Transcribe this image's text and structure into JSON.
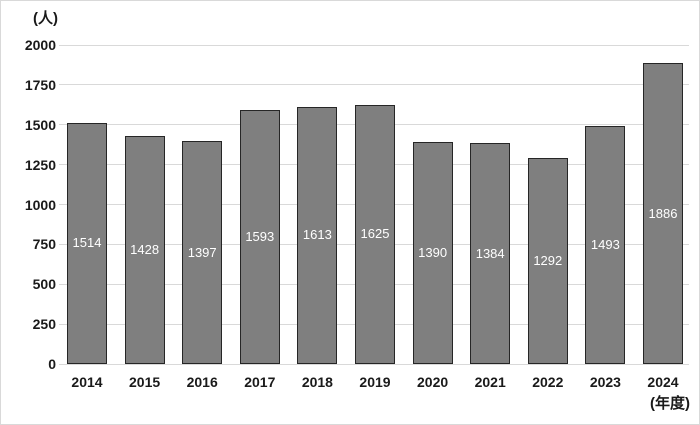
{
  "chart_data": {
    "type": "bar",
    "title": "",
    "categories": [
      "2014",
      "2015",
      "2016",
      "2017",
      "2018",
      "2019",
      "2020",
      "2021",
      "2022",
      "2023",
      "2024"
    ],
    "values": [
      1514,
      1428,
      1397,
      1593,
      1613,
      1625,
      1390,
      1384,
      1292,
      1493,
      1886
    ],
    "y_axis": {
      "unit_label": "(人)",
      "min": 0,
      "max": 2000,
      "step": 250,
      "tick_labels": [
        "0",
        "250",
        "500",
        "750",
        "1000",
        "1250",
        "1500",
        "1750",
        "2000"
      ]
    },
    "x_axis": {
      "unit_label": "(年度)"
    },
    "legend": "none",
    "grid": "horizontal",
    "colors": {
      "bar_fill": "#7f7f7f",
      "bar_border": "#262626",
      "value_label": "#ffffff",
      "gridline": "#d9d9d9",
      "axis_text": "#1a1a1a",
      "background": "#ffffff"
    }
  }
}
